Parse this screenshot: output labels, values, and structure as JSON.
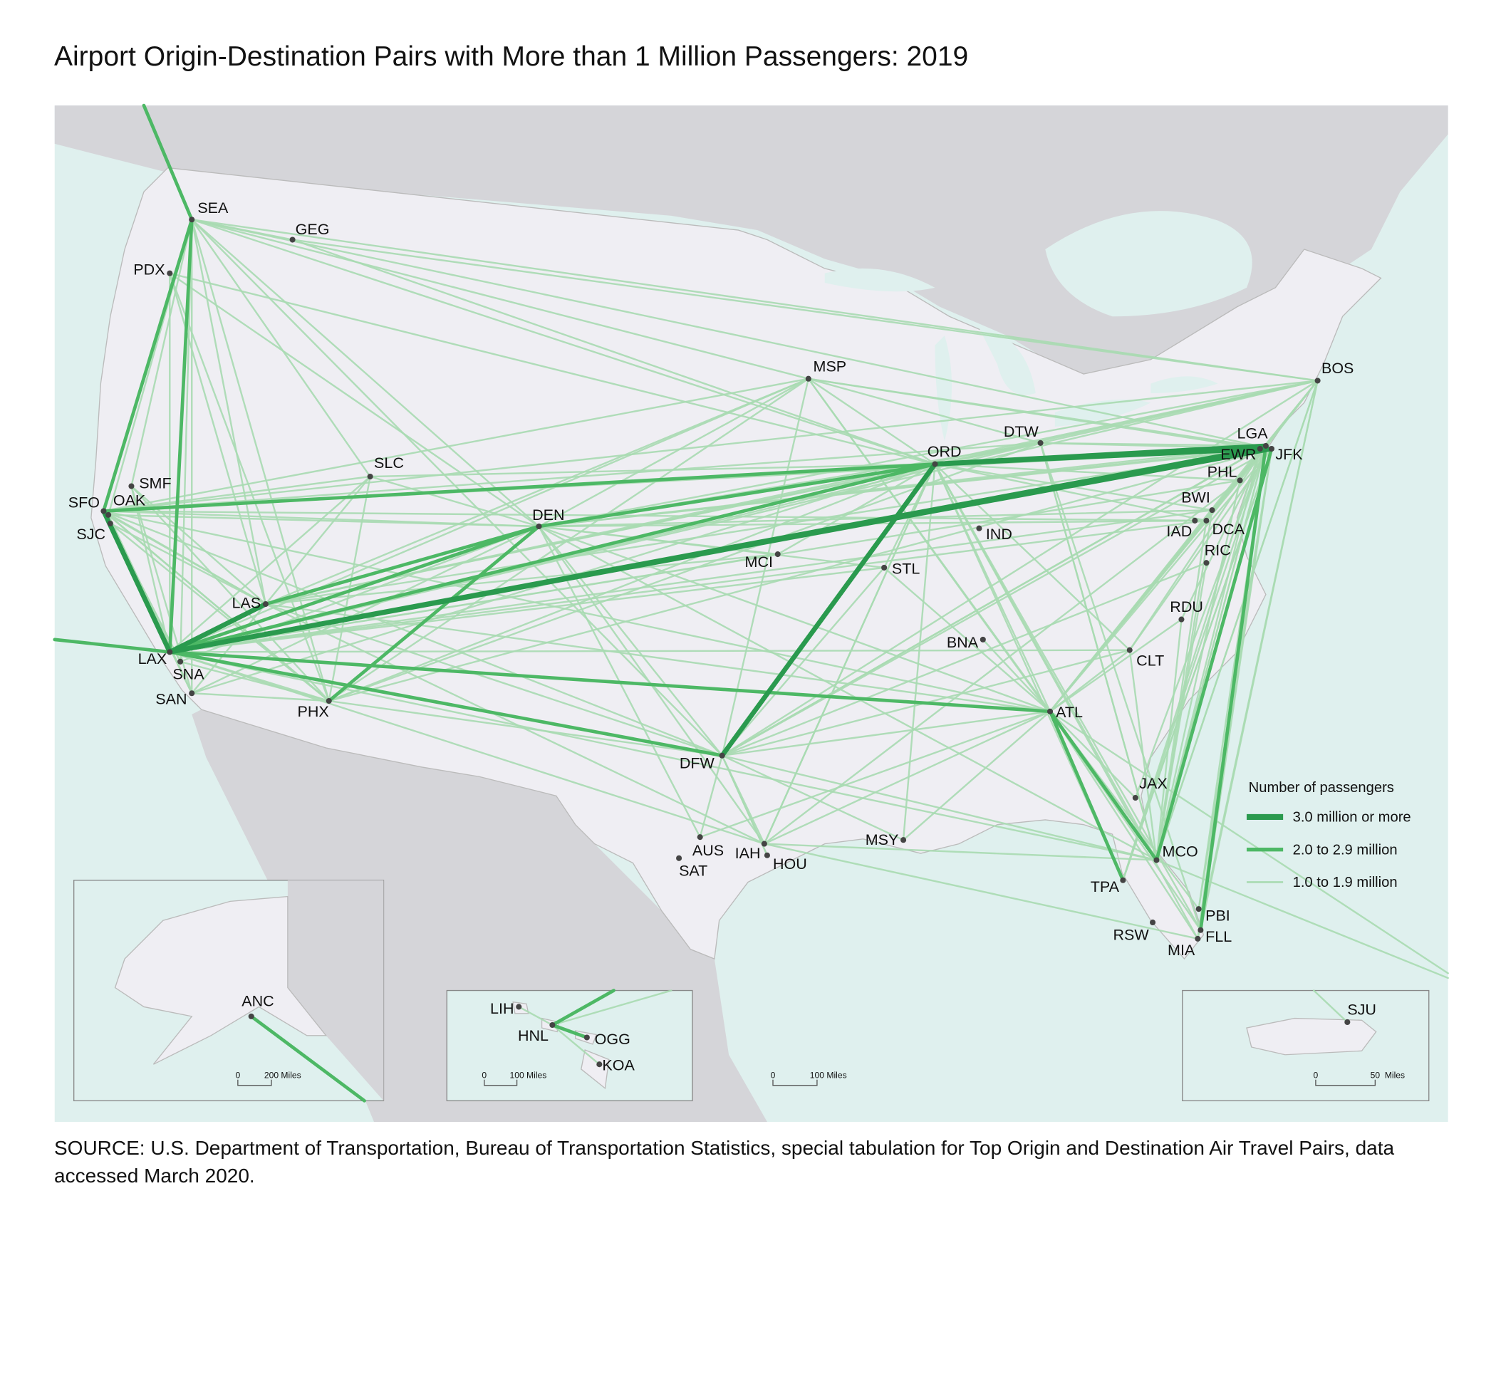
{
  "title": "Airport Origin-Destination Pairs with More than 1 Million Passengers: 2019",
  "airports": [
    "SEA",
    "GEG",
    "PDX",
    "SMF",
    "SFO",
    "OAK",
    "SJC",
    "SLC",
    "LAS",
    "LAX",
    "SNA",
    "SAN",
    "PHX",
    "DEN",
    "MSP",
    "MCI",
    "STL",
    "DFW",
    "AUS",
    "SAT",
    "IAH",
    "HOU",
    "MSY",
    "ORD",
    "DTW",
    "IND",
    "BNA",
    "ATL",
    "CLT",
    "RDU",
    "JAX",
    "MCO",
    "TPA",
    "RSW",
    "PBI",
    "FLL",
    "MIA",
    "RIC",
    "DCA",
    "IAD",
    "BWI",
    "PHL",
    "EWR",
    "LGA",
    "JFK",
    "BOS",
    "ANC",
    "LIH",
    "HNL",
    "OGG",
    "KOA",
    "SJU"
  ],
  "legend": {
    "title": "Number of passengers",
    "items": [
      "3.0 million or more",
      "2.0 to 2.9 million",
      "1.0 to 1.9 million"
    ]
  },
  "scale_bars": [
    [
      "0",
      "200",
      "Miles"
    ],
    [
      "0",
      "100",
      "Miles"
    ],
    [
      "0",
      "100",
      "Miles"
    ],
    [
      "0",
      "50",
      "Miles"
    ]
  ],
  "source": "SOURCE: U.S. Department of Transportation, Bureau of Transportation Statistics, special tabulation for Top Origin and Destination Air Travel Pairs, data accessed March 2020."
}
